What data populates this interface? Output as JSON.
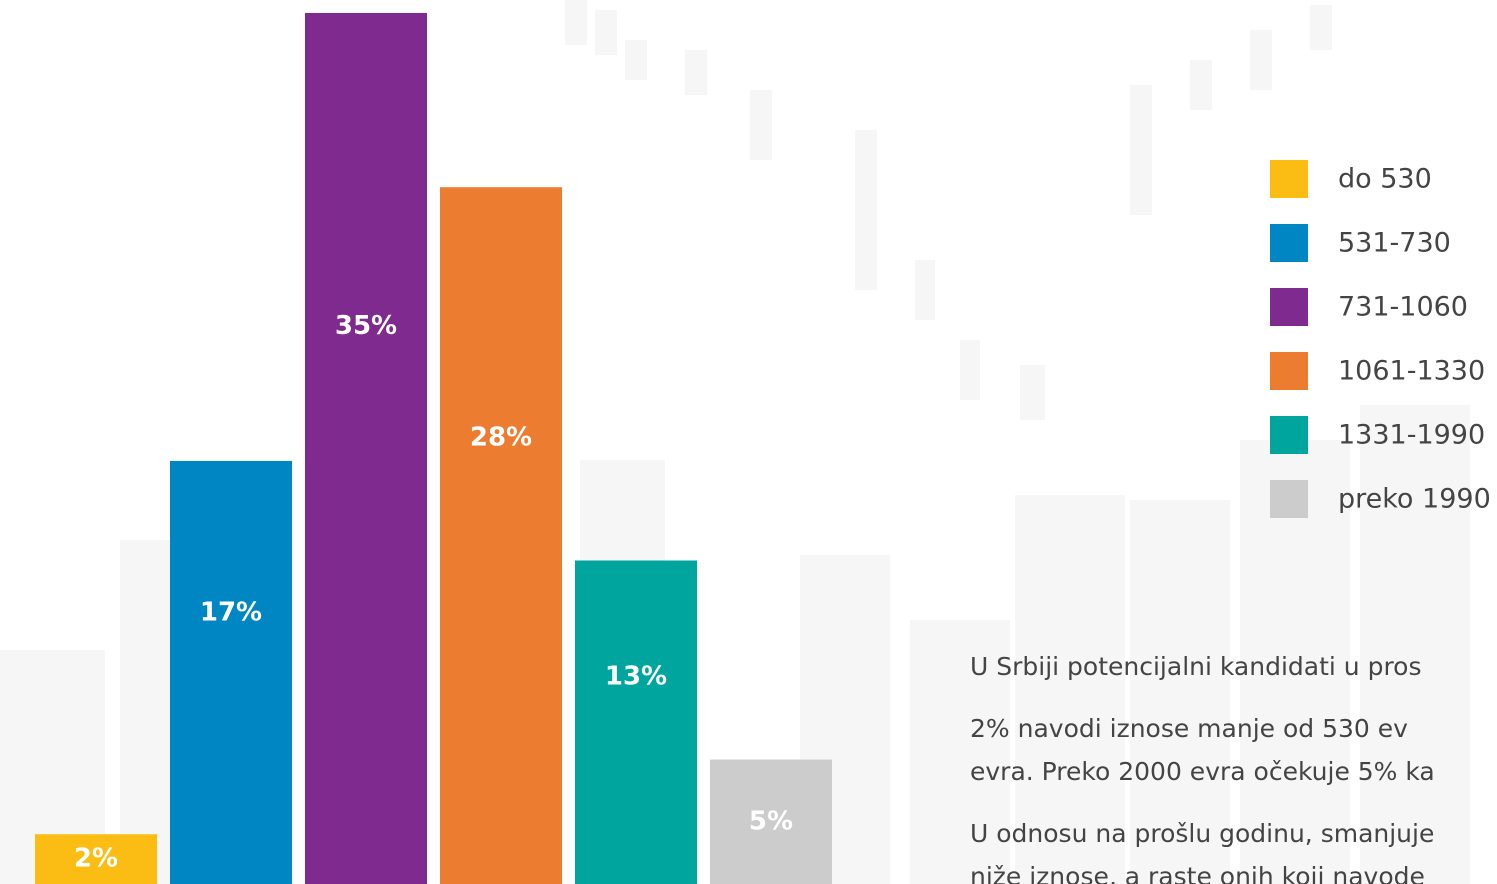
{
  "chart_data": {
    "type": "bar",
    "categories": [
      "do 530",
      "531-730",
      "731-1060",
      "1061-1330",
      "1331-1990",
      "preko 1990"
    ],
    "values": [
      2,
      17,
      35,
      28,
      13,
      5
    ],
    "value_labels": [
      "2%",
      "17%",
      "35%",
      "28%",
      "13%",
      "5%"
    ],
    "colors": [
      "#fbbd13",
      "#0086c3",
      "#7f2a8e",
      "#ec7d30",
      "#00a69d",
      "#cccccc"
    ]
  },
  "paragraphs": [
    [
      "U Srbiji potencijalni kandidati u pros"
    ],
    [
      "2% navodi iznose manje od 530 ev",
      "evra. Preko 2000 evra očekuje 5% ka"
    ],
    [
      "U odnosu na prošlu godinu, smanjuje",
      "niže iznose, a raste onih koji navode"
    ]
  ]
}
